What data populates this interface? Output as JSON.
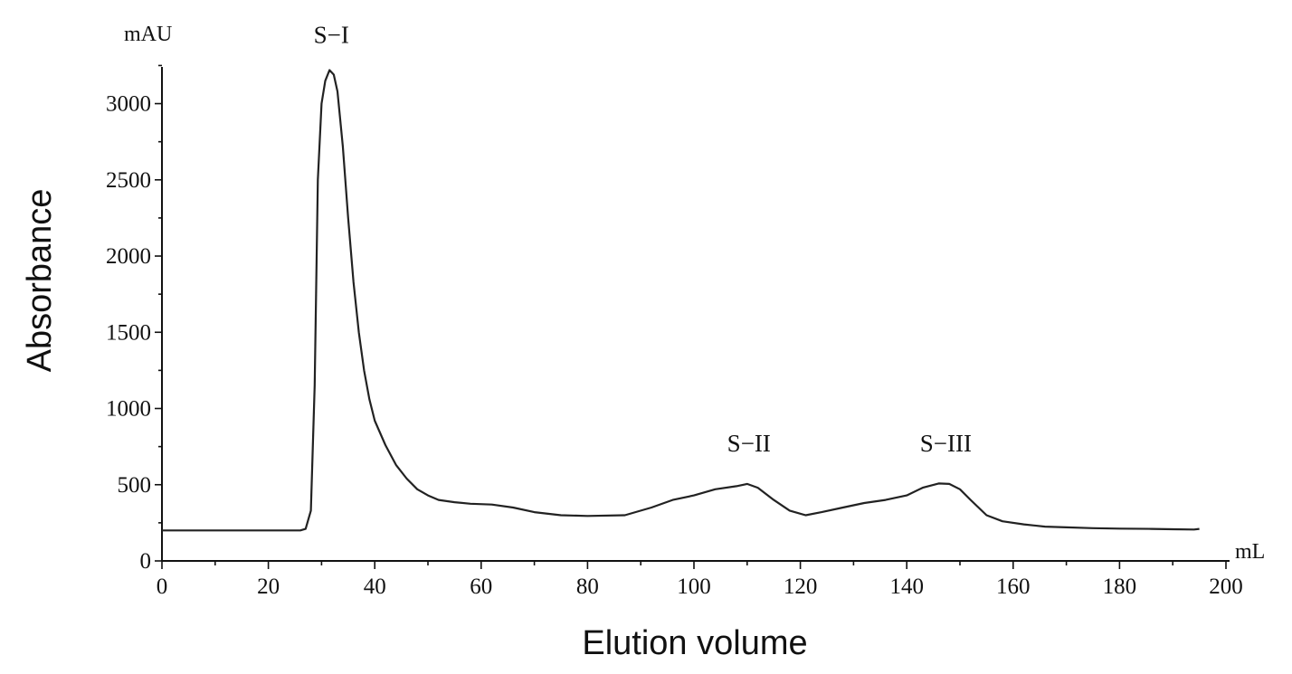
{
  "chart_data": {
    "type": "line",
    "ylabel": "Absorbance",
    "xlabel": "Elution volume",
    "y_unit": "mAU",
    "x_unit": "mL",
    "xlim": [
      0,
      200
    ],
    "ylim": [
      0,
      3300
    ],
    "x_ticks": [
      "0",
      "20",
      "40",
      "60",
      "80",
      "100",
      "120",
      "140",
      "160",
      "180",
      "200"
    ],
    "y_ticks": [
      "0",
      "500",
      "1000",
      "1500",
      "2000",
      "2500",
      "3000"
    ],
    "grid": false,
    "peaks": [
      {
        "label": "S−I",
        "x": 31.5,
        "y": 3220
      },
      {
        "label": "S−II",
        "x": 110,
        "y": 510
      },
      {
        "label": "S−III",
        "x": 147,
        "y": 510
      }
    ],
    "series": [
      {
        "x": [
          0,
          26,
          27,
          28,
          28.7,
          29.3,
          30,
          30.7,
          31.5,
          32.3,
          33,
          34,
          35,
          36,
          37,
          38,
          39,
          40,
          42,
          44,
          46,
          48,
          50,
          52,
          55,
          58,
          62,
          66,
          70,
          75,
          80,
          87,
          92,
          96,
          100,
          104,
          108,
          110,
          112,
          115,
          118,
          121,
          124,
          128,
          132,
          136,
          140,
          143,
          146,
          148,
          150,
          152,
          155,
          158,
          162,
          166,
          170,
          175,
          180,
          186,
          190,
          194,
          195
        ],
        "y": [
          200,
          200,
          210,
          330,
          1150,
          2500,
          3000,
          3150,
          3220,
          3190,
          3080,
          2720,
          2250,
          1830,
          1500,
          1250,
          1060,
          920,
          760,
          630,
          540,
          470,
          430,
          400,
          385,
          375,
          370,
          350,
          320,
          300,
          295,
          300,
          350,
          400,
          430,
          470,
          490,
          505,
          480,
          400,
          330,
          300,
          320,
          350,
          380,
          400,
          430,
          480,
          508,
          505,
          470,
          400,
          300,
          260,
          240,
          225,
          220,
          215,
          212,
          210,
          208,
          206,
          210
        ]
      }
    ]
  }
}
